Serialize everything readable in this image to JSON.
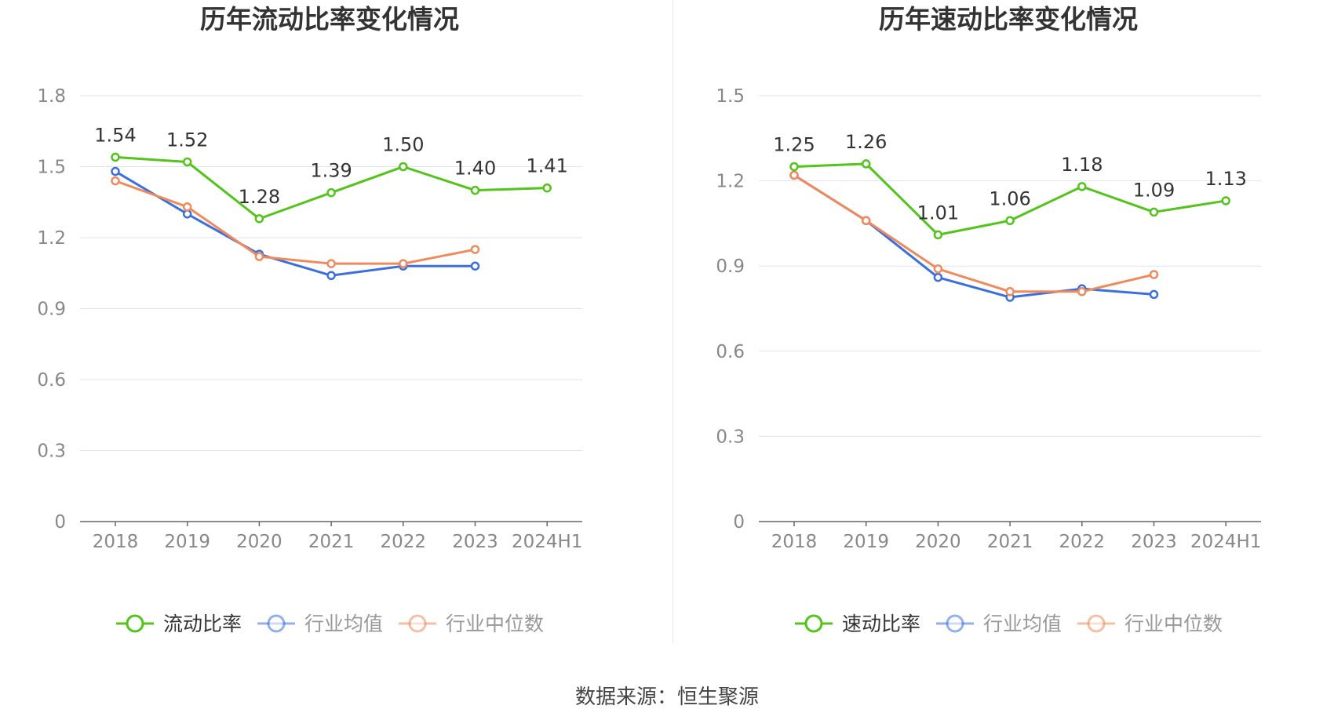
{
  "colors": {
    "primary": "#52c41a",
    "avg": "#3b6fde",
    "median": "#f08a5d",
    "grid": "#dde3ef",
    "axis": "#666666",
    "tick": "#888888",
    "label": "#333333"
  },
  "footer": {
    "source": "数据来源：恒生聚源"
  },
  "chart_data": [
    {
      "type": "line",
      "title": "历年流动比率变化情况",
      "categories": [
        "2018",
        "2019",
        "2020",
        "2021",
        "2022",
        "2023",
        "2024H1"
      ],
      "ylim": [
        0,
        1.8
      ],
      "yticks": [
        "0",
        "0.3",
        "0.6",
        "0.9",
        "1.2",
        "1.5",
        "1.8"
      ],
      "grid": true,
      "legend_position": "bottom",
      "series": [
        {
          "name": "流动比率",
          "role": "primary",
          "values": [
            1.54,
            1.52,
            1.28,
            1.39,
            1.5,
            1.4,
            1.41
          ],
          "labels": [
            "1.54",
            "1.52",
            "1.28",
            "1.39",
            "1.50",
            "1.40",
            "1.41"
          ]
        },
        {
          "name": "行业均值",
          "role": "avg",
          "values": [
            1.48,
            1.3,
            1.13,
            1.04,
            1.08,
            1.08,
            null
          ]
        },
        {
          "name": "行业中位数",
          "role": "median",
          "values": [
            1.44,
            1.33,
            1.12,
            1.09,
            1.09,
            1.15,
            null
          ]
        }
      ]
    },
    {
      "type": "line",
      "title": "历年速动比率变化情况",
      "categories": [
        "2018",
        "2019",
        "2020",
        "2021",
        "2022",
        "2023",
        "2024H1"
      ],
      "ylim": [
        0,
        1.5
      ],
      "yticks": [
        "0",
        "0.3",
        "0.6",
        "0.9",
        "1.2",
        "1.5"
      ],
      "grid": true,
      "legend_position": "bottom",
      "series": [
        {
          "name": "速动比率",
          "role": "primary",
          "values": [
            1.25,
            1.26,
            1.01,
            1.06,
            1.18,
            1.09,
            1.13
          ],
          "labels": [
            "1.25",
            "1.26",
            "1.01",
            "1.06",
            "1.18",
            "1.09",
            "1.13"
          ]
        },
        {
          "name": "行业均值",
          "role": "avg",
          "values": [
            1.22,
            1.06,
            0.86,
            0.79,
            0.82,
            0.8,
            null
          ]
        },
        {
          "name": "行业中位数",
          "role": "median",
          "values": [
            1.22,
            1.06,
            0.89,
            0.81,
            0.81,
            0.87,
            null
          ]
        }
      ]
    }
  ]
}
